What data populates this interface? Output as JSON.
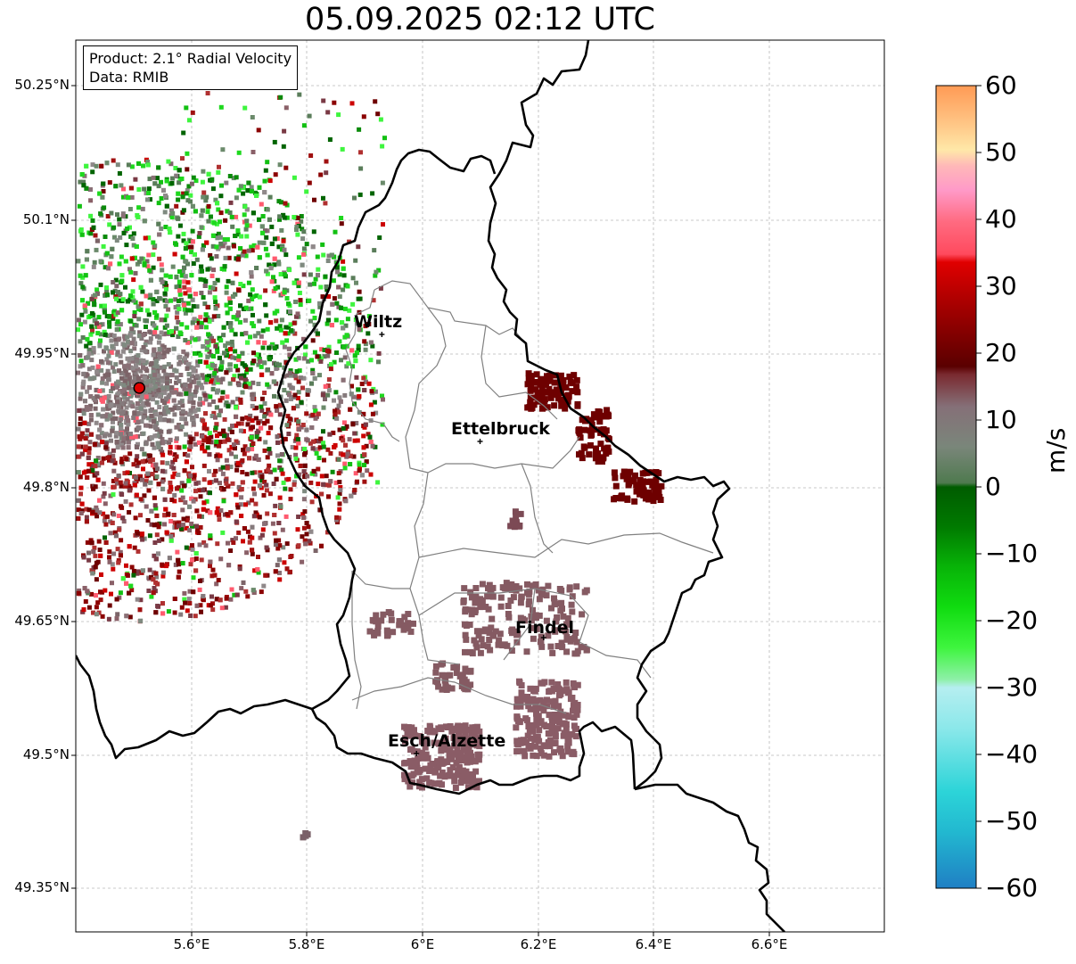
{
  "title": "05.09.2025 02:12 UTC",
  "info": {
    "product": "Product: 2.1° Radial Velocity",
    "data": "Data: RMIB"
  },
  "map": {
    "lon_range": [
      5.4,
      6.8
    ],
    "lat_range": [
      49.3,
      50.3
    ],
    "lat_ticks": [
      "50.25°N",
      "50.1°N",
      "49.95°N",
      "49.8°N",
      "49.65°N",
      "49.5°N",
      "49.35°N"
    ],
    "lon_ticks": [
      "5.6°E",
      "5.8°E",
      "6°E",
      "6.2°E",
      "6.4°E",
      "6.6°E"
    ],
    "gridlines": true,
    "radar_site": {
      "lon": 5.51,
      "lat": 49.91
    },
    "cities": [
      {
        "name": "Wiltz",
        "lon": 5.93,
        "lat": 49.97
      },
      {
        "name": "Ettelbruck",
        "lon": 6.1,
        "lat": 49.85
      },
      {
        "name": "Findel",
        "lon": 6.21,
        "lat": 49.63
      },
      {
        "name": "Esch/Alzette",
        "lon": 5.99,
        "lat": 49.5
      }
    ]
  },
  "colorbar": {
    "label": "m/s",
    "ticks": [
      "60",
      "50",
      "40",
      "30",
      "20",
      "10",
      "0",
      "−10",
      "−20",
      "−30",
      "−40",
      "−50",
      "−60"
    ],
    "range": [
      -60,
      60
    ],
    "colors": {
      "neg_60": "#1f7fc4",
      "neg_50": "#2cd4d8",
      "neg_40": "#b5eef0",
      "neg_30": "#3ef53e",
      "neg_20": "#12c012",
      "neg_10": "#006400",
      "zero": "#857f7a",
      "pos_10": "#6e0000",
      "pos_20": "#cc0000",
      "pos_30": "#ff5a6e",
      "pos_40": "#ff90c8",
      "pos_50": "#ffd090",
      "pos_60": "#ff9a55"
    }
  }
}
